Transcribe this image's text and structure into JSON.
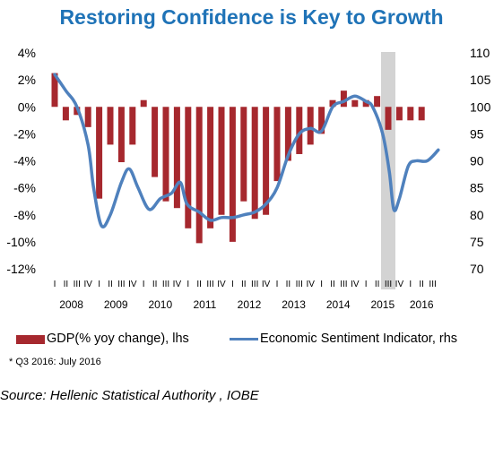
{
  "chart_data": {
    "type": "bar+line",
    "title": "Restoring Confidence is Key to Growth",
    "years": [
      "2008",
      "2009",
      "2010",
      "2011",
      "2012",
      "2013",
      "2014",
      "2015",
      "2016"
    ],
    "quarter_tick_labels": [
      "I",
      "II",
      "III",
      "IV",
      "I",
      "II",
      "III",
      "IV",
      "I",
      "II",
      "III",
      "IV",
      "I",
      "II",
      "III",
      "IV",
      "I",
      "II",
      "III",
      "IV",
      "I",
      "II",
      "III",
      "IV",
      "I",
      "II",
      "III",
      "IV",
      "I",
      "II",
      "III",
      "IV",
      "I",
      "II",
      "III"
    ],
    "left_axis": {
      "ticks": [
        "4%",
        "2%",
        "0%",
        "-2%",
        "-4%",
        "-6%",
        "-8%",
        "-10%",
        "-12%"
      ],
      "ylim": [
        -12,
        4
      ]
    },
    "right_axis": {
      "ticks": [
        "110",
        "105",
        "100",
        "95",
        "90",
        "85",
        "80",
        "75",
        "70"
      ],
      "ylim": [
        70,
        110
      ]
    },
    "highlight": {
      "label": "2015 Q3",
      "quarter_index": 30
    },
    "series": [
      {
        "name": "GDP(% yoy change), lhs",
        "type": "bar",
        "axis": "left",
        "color": "#a6282e",
        "values": [
          2.5,
          -1.0,
          -0.6,
          -1.5,
          -6.8,
          -2.8,
          -4.1,
          -2.8,
          0.5,
          -5.2,
          -7.0,
          -7.5,
          -9.0,
          -10.1,
          -9.0,
          -8.0,
          -10.0,
          -7.0,
          -8.3,
          -8.0,
          -5.5,
          -4.0,
          -3.5,
          -2.8,
          -2.0,
          0.5,
          1.2,
          0.5,
          0.5,
          0.8,
          -1.7,
          -1.0,
          -1.0,
          -1.0,
          null
        ]
      },
      {
        "name": "Economic Sentiment Indicator, rhs",
        "type": "line",
        "axis": "right",
        "color": "#4f81bd",
        "points": [
          [
            0,
            106
          ],
          [
            1,
            103
          ],
          [
            2,
            100
          ],
          [
            3,
            93
          ],
          [
            3.5,
            85
          ],
          [
            4.2,
            78
          ],
          [
            5,
            80
          ],
          [
            6,
            86
          ],
          [
            6.7,
            88.5
          ],
          [
            7.5,
            85
          ],
          [
            8.5,
            81
          ],
          [
            9.5,
            83
          ],
          [
            10.5,
            84
          ],
          [
            11.3,
            86
          ],
          [
            11.9,
            82
          ],
          [
            13,
            80.5
          ],
          [
            14,
            79
          ],
          [
            15,
            79.5
          ],
          [
            16,
            79.5
          ],
          [
            17,
            80
          ],
          [
            18,
            80.5
          ],
          [
            19,
            82
          ],
          [
            20,
            85
          ],
          [
            21,
            91
          ],
          [
            22,
            95
          ],
          [
            23,
            96
          ],
          [
            24,
            95.5
          ],
          [
            25,
            100
          ],
          [
            26,
            101
          ],
          [
            27,
            102
          ],
          [
            28,
            101
          ],
          [
            28.6,
            100
          ],
          [
            29.5,
            95
          ],
          [
            30.1,
            88
          ],
          [
            30.5,
            81
          ],
          [
            31,
            83
          ],
          [
            31.8,
            89
          ],
          [
            32.5,
            90
          ],
          [
            33.5,
            90
          ],
          [
            34.5,
            92
          ]
        ]
      }
    ],
    "legend": {
      "placement": "bottom"
    }
  },
  "footnote": "* Q3 2016: July 2016",
  "source": "Source: Hellenic Statistical Authority , IOBE"
}
